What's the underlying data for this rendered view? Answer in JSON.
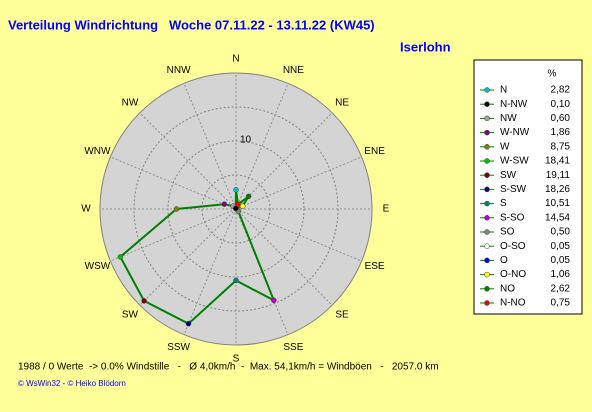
{
  "chart_data": {
    "type": "radar",
    "title": "Verteilung Windrichtung   Woche 07.11.22 - 13.11.22 (KW45)",
    "subtitle": "Iserlohn",
    "categories": [
      "N",
      "NNE",
      "NE",
      "ENE",
      "E",
      "ESE",
      "SE",
      "SSE",
      "S",
      "SSW",
      "SW",
      "WSW",
      "W",
      "WNW",
      "NW",
      "NNW"
    ],
    "values": [
      2.82,
      0.75,
      2.62,
      1.06,
      0.05,
      0.05,
      0.5,
      14.54,
      10.51,
      18.26,
      19.11,
      18.41,
      8.75,
      1.86,
      0.6,
      0.1
    ],
    "value_labels": [
      "2,82",
      "0,75",
      "2,62",
      "1,06",
      "0,05",
      "0,05",
      "0,50",
      "14,54",
      "10,51",
      "18,26",
      "19,11",
      "18,41",
      "8,75",
      "1,86",
      "0,60",
      "0,10"
    ],
    "legend_names": [
      "N",
      "N-NO",
      "NO",
      "O-NO",
      "O",
      "O-SO",
      "SO",
      "S-SO",
      "S",
      "S-SW",
      "SW",
      "W-SW",
      "W",
      "W-NW",
      "NW",
      "N-NW"
    ],
    "marker_colors": [
      "#00c0c0",
      "#ff0000",
      "#008000",
      "#ffff00",
      "#0000ff",
      "#ffffff",
      "#808080",
      "#c000c0",
      "#008080",
      "#000080",
      "#800000",
      "#00c000",
      "#808000",
      "#800080",
      "#a0a0a0",
      "#000000"
    ],
    "line_color": "#008000",
    "legend_header": "%",
    "rlim": [
      0,
      20
    ],
    "rgrid": [
      5,
      10,
      15
    ],
    "rticks": [
      10
    ],
    "footer": "1988 / 0 Werte  -> 0.0% Windstille   -   Ø 4,0km/h  -  Max. 54,1km/h = Windböen   -   2057.0 km",
    "credit": "© WsWin32  -  © Heiko Blödorn"
  }
}
